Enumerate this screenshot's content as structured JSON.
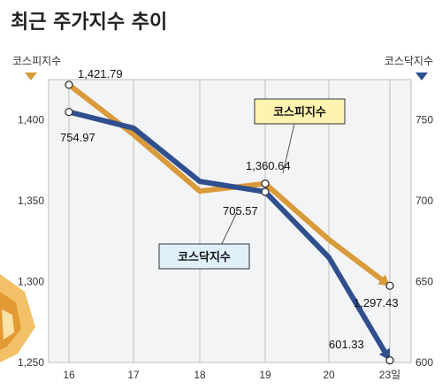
{
  "title": "최근 주가지수 추이",
  "colors": {
    "kospi": "#D99A3A",
    "kosdaq": "#2F4F8F",
    "grid": "#bfbfbf",
    "plot_bg": "#f3f4f6",
    "kospi_legend_bg": "#fff3b0",
    "kosdaq_legend_bg": "#dff0fb"
  },
  "chart_data": {
    "type": "line",
    "x": [
      16,
      17,
      18,
      19,
      20,
      23
    ],
    "x_tick_labels": [
      "16",
      "17",
      "18",
      "19",
      "20",
      "23일"
    ],
    "left_axis": {
      "label": "코스피지수",
      "ylim": [
        1250,
        1425
      ],
      "ticks": [
        1250,
        1300,
        1350,
        1400
      ],
      "tick_labels": [
        "1,250",
        "1,300",
        "1,350",
        "1,400"
      ]
    },
    "right_axis": {
      "label": "코스닥지수",
      "ylim": [
        600,
        775
      ],
      "ticks": [
        600,
        650,
        700,
        750
      ],
      "tick_labels": [
        "600",
        "650",
        "700",
        "750"
      ]
    },
    "grid": "vertical",
    "series": [
      {
        "name": "코스피지수",
        "axis": "left",
        "values": [
          1421.79,
          1391,
          1356,
          1360.64,
          1326,
          1297.43
        ],
        "labels": [
          "1,421.79",
          "",
          "",
          "1,360.64",
          "",
          "1,297.43"
        ]
      },
      {
        "name": "코스닥지수",
        "axis": "right",
        "values": [
          754.97,
          745,
          712,
          705.57,
          665,
          601.33
        ],
        "labels": [
          "754.97",
          "",
          "",
          "705.57",
          "",
          "601.33"
        ]
      }
    ]
  }
}
